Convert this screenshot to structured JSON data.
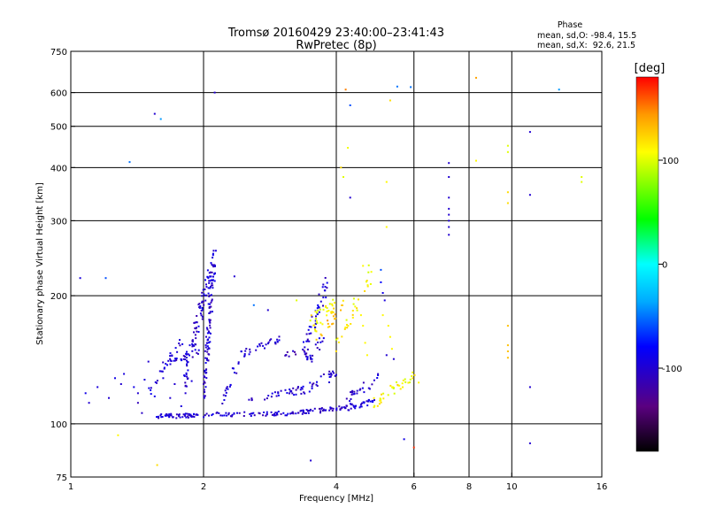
{
  "chart_data": {
    "type": "scatter",
    "title": "Tromsø 20160429 23:40:00–23:41:43",
    "subtitle": "RwPretec (8p)",
    "xlabel": "Frequency [MHz]",
    "ylabel": "Stationary phase Virtual Height [km]",
    "x_scale": "log",
    "y_scale": "log",
    "xlim": [
      1,
      16
    ],
    "ylim": [
      75,
      750
    ],
    "x_ticks": [
      1,
      2,
      4,
      6,
      8,
      10,
      16
    ],
    "x_tick_labels": [
      "1",
      "2",
      "4",
      "6",
      "8",
      "10",
      "16"
    ],
    "y_ticks": [
      75,
      100,
      200,
      300,
      400,
      500,
      600,
      750
    ],
    "y_tick_labels": [
      "75",
      "100",
      "200",
      "300",
      "400",
      "500",
      "600",
      "750"
    ],
    "grid": true,
    "grid_x": [
      2,
      4,
      6,
      8,
      10
    ],
    "grid_y": [
      100,
      200,
      300,
      400,
      500,
      600
    ],
    "stats": {
      "heading": "Phase",
      "line_o": "mean, sd,O: -98.4, 15.5",
      "line_x": "mean, sd,X:  92.6, 21.5"
    },
    "colorbar": {
      "label": "[deg]",
      "range": [
        -180,
        180
      ],
      "ticks": [
        100,
        0,
        -100
      ],
      "tick_labels": [
        "100",
        "0",
        "-100"
      ]
    },
    "points": [
      [
        1.05,
        220,
        -95
      ],
      [
        1.08,
        118,
        -90
      ],
      [
        1.1,
        112,
        -100
      ],
      [
        1.15,
        122,
        -95
      ],
      [
        1.2,
        220,
        -60
      ],
      [
        1.22,
        115,
        -100
      ],
      [
        1.26,
        128,
        -90
      ],
      [
        1.28,
        94,
        110
      ],
      [
        1.3,
        124,
        -100
      ],
      [
        1.32,
        131,
        -95
      ],
      [
        1.36,
        412,
        -50
      ],
      [
        1.39,
        122,
        -90
      ],
      [
        1.42,
        118,
        -100
      ],
      [
        1.47,
        127,
        -95
      ],
      [
        1.5,
        140,
        -100
      ],
      [
        1.55,
        535,
        -100
      ],
      [
        1.57,
        80,
        120
      ],
      [
        1.6,
        520,
        -40
      ],
      [
        1.42,
        112,
        -110
      ],
      [
        1.45,
        106,
        -105
      ],
      [
        1.55,
        116,
        -90
      ],
      [
        1.62,
        128,
        -95
      ],
      [
        1.68,
        115,
        -100
      ],
      [
        1.72,
        124,
        -100
      ],
      [
        1.78,
        110,
        -95
      ],
      [
        1.82,
        118,
        -100
      ],
      [
        1.88,
        126,
        -95
      ],
      [
        2.12,
        600,
        -100
      ],
      [
        2.35,
        222,
        -100
      ],
      [
        2.6,
        190,
        -50
      ],
      [
        2.8,
        185,
        -100
      ],
      [
        3.25,
        195,
        100
      ],
      [
        3.5,
        82,
        -100
      ],
      [
        4.1,
        400,
        120
      ],
      [
        4.15,
        380,
        100
      ],
      [
        4.2,
        610,
        150
      ],
      [
        4.25,
        445,
        105
      ],
      [
        4.3,
        560,
        -60
      ],
      [
        4.3,
        340,
        -100
      ],
      [
        4.6,
        235,
        110
      ],
      [
        5.2,
        370,
        110
      ],
      [
        5.2,
        290,
        110
      ],
      [
        5.3,
        575,
        120
      ],
      [
        5.5,
        620,
        -50
      ],
      [
        5.7,
        92,
        -90
      ],
      [
        5.9,
        618,
        -50
      ],
      [
        6.0,
        88,
        170
      ],
      [
        6.15,
        125,
        110
      ],
      [
        7.2,
        410,
        -100
      ],
      [
        7.2,
        380,
        -100
      ],
      [
        7.2,
        340,
        -100
      ],
      [
        7.2,
        320,
        -100
      ],
      [
        7.2,
        310,
        -100
      ],
      [
        7.2,
        300,
        -100
      ],
      [
        7.2,
        290,
        -100
      ],
      [
        7.2,
        278,
        -100
      ],
      [
        8.3,
        650,
        140
      ],
      [
        8.3,
        415,
        110
      ],
      [
        9.8,
        450,
        100
      ],
      [
        9.8,
        435,
        100
      ],
      [
        9.8,
        350,
        120
      ],
      [
        9.8,
        330,
        120
      ],
      [
        9.8,
        170,
        130
      ],
      [
        9.8,
        153,
        130
      ],
      [
        9.8,
        148,
        130
      ],
      [
        9.8,
        143,
        130
      ],
      [
        11.0,
        485,
        -100
      ],
      [
        11.0,
        345,
        -100
      ],
      [
        11.0,
        122,
        -100
      ],
      [
        11.0,
        90,
        -100
      ],
      [
        12.8,
        610,
        -40
      ],
      [
        14.4,
        380,
        100
      ],
      [
        14.4,
        370,
        100
      ],
      [
        5.05,
        230,
        -60
      ],
      [
        5.05,
        215,
        -80
      ],
      [
        5.1,
        203,
        -90
      ],
      [
        5.15,
        195,
        -95
      ],
      [
        5.1,
        180,
        110
      ],
      [
        5.25,
        170,
        110
      ],
      [
        5.3,
        160,
        110
      ],
      [
        5.35,
        150,
        110
      ],
      [
        5.2,
        145,
        -100
      ],
      [
        5.4,
        142,
        -100
      ],
      [
        4.55,
        180,
        110
      ],
      [
        4.6,
        170,
        110
      ],
      [
        4.65,
        155,
        110
      ],
      [
        4.7,
        145,
        110
      ]
    ],
    "traces": [
      {
        "x": [
          1.55,
          2.05
        ],
        "y": [
          104,
          105
        ],
        "n": 55,
        "phase": -100,
        "jitter": 0.012
      },
      {
        "x": [
          2.05,
          3.2
        ],
        "y": [
          105,
          106
        ],
        "n": 55,
        "phase": -100,
        "jitter": 0.012
      },
      {
        "x": [
          3.2,
          4.2
        ],
        "y": [
          106,
          109
        ],
        "n": 50,
        "phase": -105,
        "jitter": 0.012
      },
      {
        "x": [
          4.2,
          4.9
        ],
        "y": [
          109,
          113
        ],
        "n": 32,
        "phase": -95,
        "jitter": 0.015
      },
      {
        "x": [
          4.9,
          6.0
        ],
        "y": [
          112,
          130
        ],
        "n": 38,
        "phase": 110,
        "jitter": 0.03
      },
      {
        "x": [
          1.5,
          1.8
        ],
        "y": [
          118,
          160
        ],
        "n": 25,
        "phase": -100,
        "jitter": 0.03
      },
      {
        "x": [
          1.8,
          2.08
        ],
        "y": [
          125,
          230
        ],
        "n": 90,
        "phase": -100,
        "jitter": 0.06
      },
      {
        "x": [
          2.0,
          2.12
        ],
        "y": [
          115,
          250
        ],
        "n": 100,
        "phase": -100,
        "jitter": 0.06
      },
      {
        "x": [
          1.65,
          1.95
        ],
        "y": [
          138,
          148
        ],
        "n": 25,
        "phase": -100,
        "jitter": 0.015
      },
      {
        "x": [
          2.4,
          3.0
        ],
        "y": [
          145,
          160
        ],
        "n": 30,
        "phase": -100,
        "jitter": 0.02
      },
      {
        "x": [
          3.0,
          3.5
        ],
        "y": [
          145,
          148
        ],
        "n": 15,
        "phase": -110,
        "jitter": 0.015
      },
      {
        "x": [
          3.4,
          3.85
        ],
        "y": [
          152,
          225
        ],
        "n": 40,
        "phase": -100,
        "jitter": 0.05
      },
      {
        "x": [
          3.5,
          3.95
        ],
        "y": [
          170,
          190
        ],
        "n": 30,
        "phase": 110,
        "jitter": 0.05
      },
      {
        "x": [
          3.4,
          3.8
        ],
        "y": [
          140,
          160
        ],
        "n": 20,
        "phase": -100,
        "jitter": 0.04
      },
      {
        "x": [
          2.5,
          3.3
        ],
        "y": [
          112,
          120
        ],
        "n": 30,
        "phase": -100,
        "jitter": 0.02
      },
      {
        "x": [
          3.3,
          4.0
        ],
        "y": [
          118,
          132
        ],
        "n": 30,
        "phase": -100,
        "jitter": 0.03
      },
      {
        "x": [
          4.0,
          4.8
        ],
        "y": [
          150,
          228
        ],
        "n": 30,
        "phase": 110,
        "jitter": 0.05
      },
      {
        "x": [
          3.6,
          4.2
        ],
        "y": [
          160,
          190
        ],
        "n": 20,
        "phase": 130,
        "jitter": 0.04
      },
      {
        "x": [
          4.2,
          5.0
        ],
        "y": [
          115,
          128
        ],
        "n": 25,
        "phase": -100,
        "jitter": 0.03
      },
      {
        "x": [
          2.15,
          2.4
        ],
        "y": [
          105,
          140
        ],
        "n": 18,
        "phase": -100,
        "jitter": 0.04
      }
    ]
  }
}
